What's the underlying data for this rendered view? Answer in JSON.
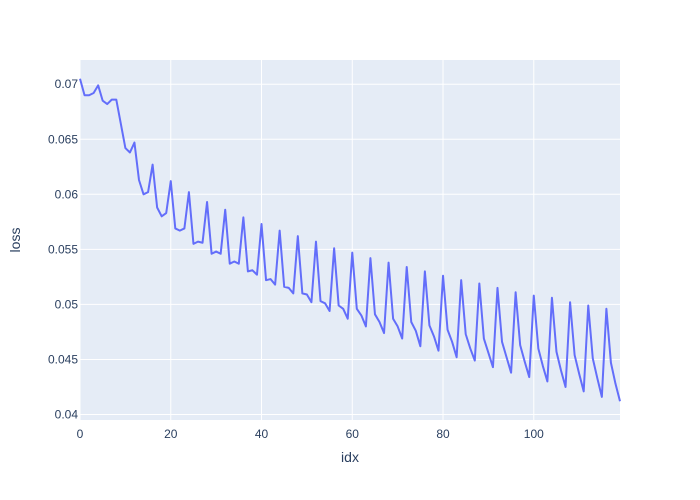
{
  "chart_data": {
    "type": "line",
    "title": "",
    "xlabel": "idx",
    "ylabel": "loss",
    "xlim": [
      0,
      119
    ],
    "ylim": [
      0.0395,
      0.0722
    ],
    "x_ticks": [
      0,
      20,
      40,
      60,
      80,
      100
    ],
    "x_tick_labels": [
      "0",
      "20",
      "40",
      "60",
      "80",
      "100"
    ],
    "y_ticks": [
      0.04,
      0.045,
      0.05,
      0.055,
      0.06,
      0.065,
      0.07
    ],
    "y_tick_labels": [
      "0.04",
      "0.045",
      "0.05",
      "0.055",
      "0.06",
      "0.065",
      "0.07"
    ],
    "grid": true,
    "plot_background": "#e5ecf6",
    "grid_color": "#ffffff",
    "line_color": "#636efa",
    "series": [
      {
        "name": "",
        "x": [
          0,
          1,
          2,
          3,
          4,
          5,
          6,
          7,
          8,
          9,
          10,
          11,
          12,
          13,
          14,
          15,
          16,
          17,
          18,
          19,
          20,
          21,
          22,
          23,
          24,
          25,
          26,
          27,
          28,
          29,
          30,
          31,
          32,
          33,
          34,
          35,
          36,
          37,
          38,
          39,
          40,
          41,
          42,
          43,
          44,
          45,
          46,
          47,
          48,
          49,
          50,
          51,
          52,
          53,
          54,
          55,
          56,
          57,
          58,
          59,
          60,
          61,
          62,
          63,
          64,
          65,
          66,
          67,
          68,
          69,
          70,
          71,
          72,
          73,
          74,
          75,
          76,
          77,
          78,
          79,
          80,
          81,
          82,
          83,
          84,
          85,
          86,
          87,
          88,
          89,
          90,
          91,
          92,
          93,
          94,
          95,
          96,
          97,
          98,
          99,
          100,
          101,
          102,
          103,
          104,
          105,
          106,
          107,
          108,
          109,
          110,
          111,
          112,
          113,
          114,
          115,
          116,
          117,
          118,
          119
        ],
        "values": [
          0.0705,
          0.069,
          0.069,
          0.0692,
          0.0699,
          0.0685,
          0.0682,
          0.0686,
          0.0686,
          0.0664,
          0.0642,
          0.0638,
          0.0647,
          0.0613,
          0.06,
          0.0602,
          0.0627,
          0.0588,
          0.058,
          0.0583,
          0.0612,
          0.0569,
          0.0567,
          0.0569,
          0.0602,
          0.0555,
          0.0557,
          0.0556,
          0.0593,
          0.0546,
          0.0548,
          0.0546,
          0.0586,
          0.0537,
          0.0539,
          0.0537,
          0.0579,
          0.053,
          0.0531,
          0.0527,
          0.0573,
          0.0522,
          0.0523,
          0.0518,
          0.0567,
          0.0516,
          0.0515,
          0.051,
          0.0562,
          0.051,
          0.0509,
          0.0502,
          0.0557,
          0.0503,
          0.0501,
          0.0494,
          0.0551,
          0.0499,
          0.0496,
          0.0487,
          0.0547,
          0.0496,
          0.049,
          0.048,
          0.0542,
          0.0491,
          0.0484,
          0.0474,
          0.0538,
          0.0487,
          0.048,
          0.0469,
          0.0534,
          0.0484,
          0.0476,
          0.0462,
          0.053,
          0.0481,
          0.0471,
          0.0458,
          0.0526,
          0.0477,
          0.0466,
          0.0452,
          0.0522,
          0.0473,
          0.046,
          0.0449,
          0.0519,
          0.0469,
          0.0456,
          0.0443,
          0.0515,
          0.0466,
          0.0452,
          0.0438,
          0.0511,
          0.0463,
          0.0448,
          0.0434,
          0.0508,
          0.046,
          0.0444,
          0.043,
          0.0506,
          0.0457,
          0.044,
          0.0425,
          0.0502,
          0.0454,
          0.0437,
          0.0421,
          0.0499,
          0.0451,
          0.0433,
          0.0416,
          0.0496,
          0.0447,
          0.0428,
          0.0412
        ]
      }
    ]
  }
}
